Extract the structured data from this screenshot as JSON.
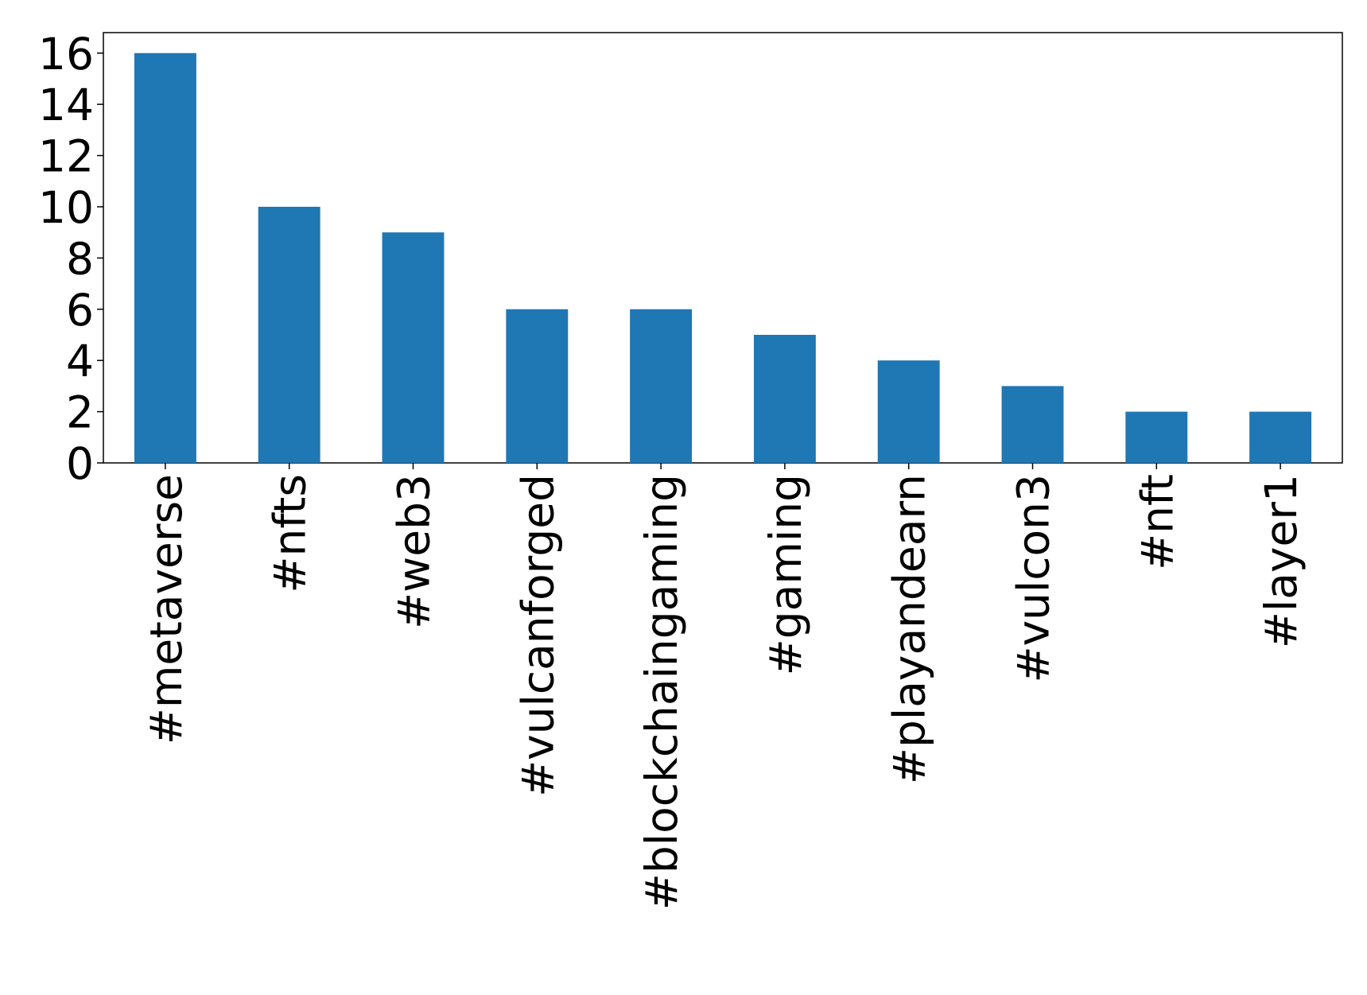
{
  "chart_data": {
    "type": "bar",
    "categories": [
      "#metaverse",
      "#nfts",
      "#web3",
      "#vulcanforged",
      "#blockchaingaming",
      "#gaming",
      "#playandearn",
      "#vulcon3",
      "#nft",
      "#layer1"
    ],
    "values": [
      16,
      10,
      9,
      6,
      6,
      5,
      4,
      3,
      2,
      2
    ],
    "color": "#1f77b4",
    "ylim": [
      0,
      16.8
    ],
    "yticks": [
      0,
      2,
      4,
      6,
      8,
      10,
      12,
      14,
      16
    ],
    "grid": false
  }
}
